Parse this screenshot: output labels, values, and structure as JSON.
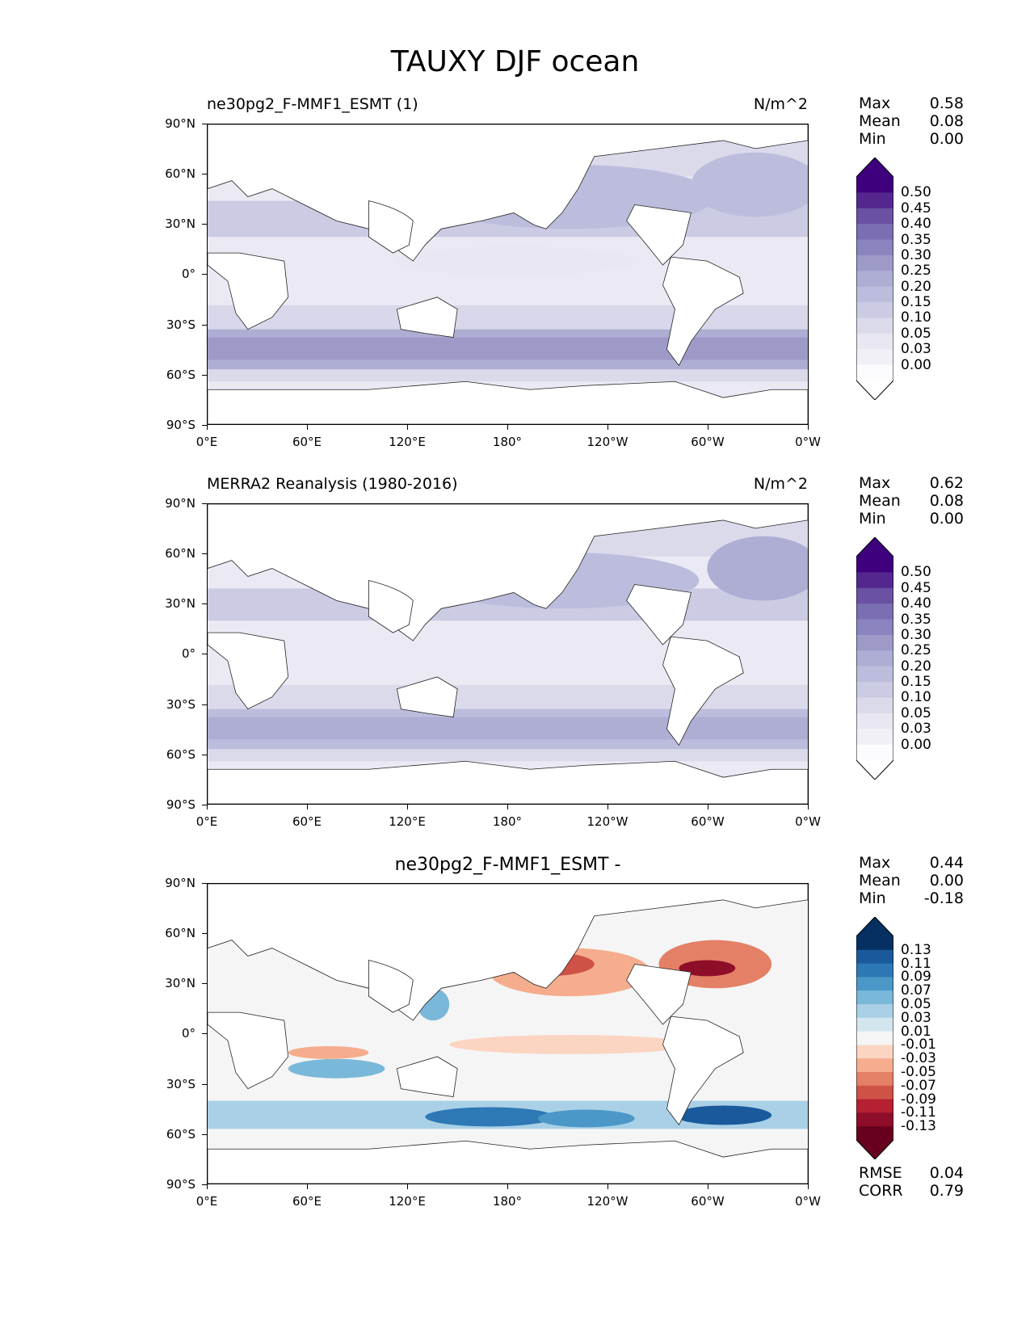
{
  "figure": {
    "title": "TAUXY DJF ocean"
  },
  "axes": {
    "lat_labels": [
      "90°N",
      "60°N",
      "30°N",
      "0°",
      "30°S",
      "60°S",
      "90°S"
    ],
    "lon_labels": [
      "0°E",
      "60°E",
      "120°E",
      "180°",
      "120°W",
      "60°W",
      "0°W"
    ]
  },
  "panels": [
    {
      "title_left": "ne30pg2_F-MMF1_ESMT (1)",
      "title_right": "N/m^2",
      "title_center": "",
      "stats": [
        {
          "key": "Max",
          "value": "0.58"
        },
        {
          "key": "Mean",
          "value": "0.08"
        },
        {
          "key": "Min",
          "value": "0.00"
        }
      ],
      "colorbar": {
        "labels": [
          "0.50",
          "0.45",
          "0.40",
          "0.35",
          "0.30",
          "0.25",
          "0.20",
          "0.15",
          "0.10",
          "0.05",
          "0.03",
          "0.00"
        ],
        "colors": [
          "#3f007d",
          "#54278f",
          "#6a51a3",
          "#7b6eb3",
          "#8a84bf",
          "#9e9ac8",
          "#aeadd3",
          "#bcbddc",
          "#cbcbe4",
          "#dadaeb",
          "#e8e7f2",
          "#f2f0f7",
          "#fcfbfd"
        ],
        "over": "#3f007d",
        "under": "#ffffff"
      }
    },
    {
      "title_left": "MERRA2 Reanalysis (1980-2016)",
      "title_right": "N/m^2",
      "title_center": "",
      "stats": [
        {
          "key": "Max",
          "value": "0.62"
        },
        {
          "key": "Mean",
          "value": "0.08"
        },
        {
          "key": "Min",
          "value": "0.00"
        }
      ],
      "colorbar": {
        "labels": [
          "0.50",
          "0.45",
          "0.40",
          "0.35",
          "0.30",
          "0.25",
          "0.20",
          "0.15",
          "0.10",
          "0.05",
          "0.03",
          "0.00"
        ],
        "colors": [
          "#3f007d",
          "#54278f",
          "#6a51a3",
          "#7b6eb3",
          "#8a84bf",
          "#9e9ac8",
          "#aeadd3",
          "#bcbddc",
          "#cbcbe4",
          "#dadaeb",
          "#e8e7f2",
          "#f2f0f7",
          "#fcfbfd"
        ],
        "over": "#3f007d",
        "under": "#ffffff"
      }
    },
    {
      "title_left": "",
      "title_right": "",
      "title_center": "ne30pg2_F-MMF1_ESMT -",
      "stats": [
        {
          "key": "Max",
          "value": "0.44"
        },
        {
          "key": "Mean",
          "value": "0.00"
        },
        {
          "key": "Min",
          "value": "-0.18"
        }
      ],
      "footer_stats": [
        {
          "key": "RMSE",
          "value": "0.04"
        },
        {
          "key": "CORR",
          "value": "0.79"
        }
      ],
      "colorbar": {
        "labels": [
          "0.13",
          "0.11",
          "0.09",
          "0.07",
          "0.05",
          "0.03",
          "0.01",
          "-0.01",
          "-0.03",
          "-0.05",
          "-0.07",
          "-0.09",
          "-0.11",
          "-0.13"
        ],
        "colors": [
          "#053061",
          "#1a5a9c",
          "#2e78b5",
          "#4b98c8",
          "#7ab8d9",
          "#a9d0e6",
          "#d3e6f0",
          "#f5f5f5",
          "#fbd5c2",
          "#f5ad8e",
          "#e48066",
          "#cf5246",
          "#b52033",
          "#8e0d28",
          "#67001f"
        ],
        "over": "#053061",
        "under": "#67001f"
      }
    }
  ]
}
